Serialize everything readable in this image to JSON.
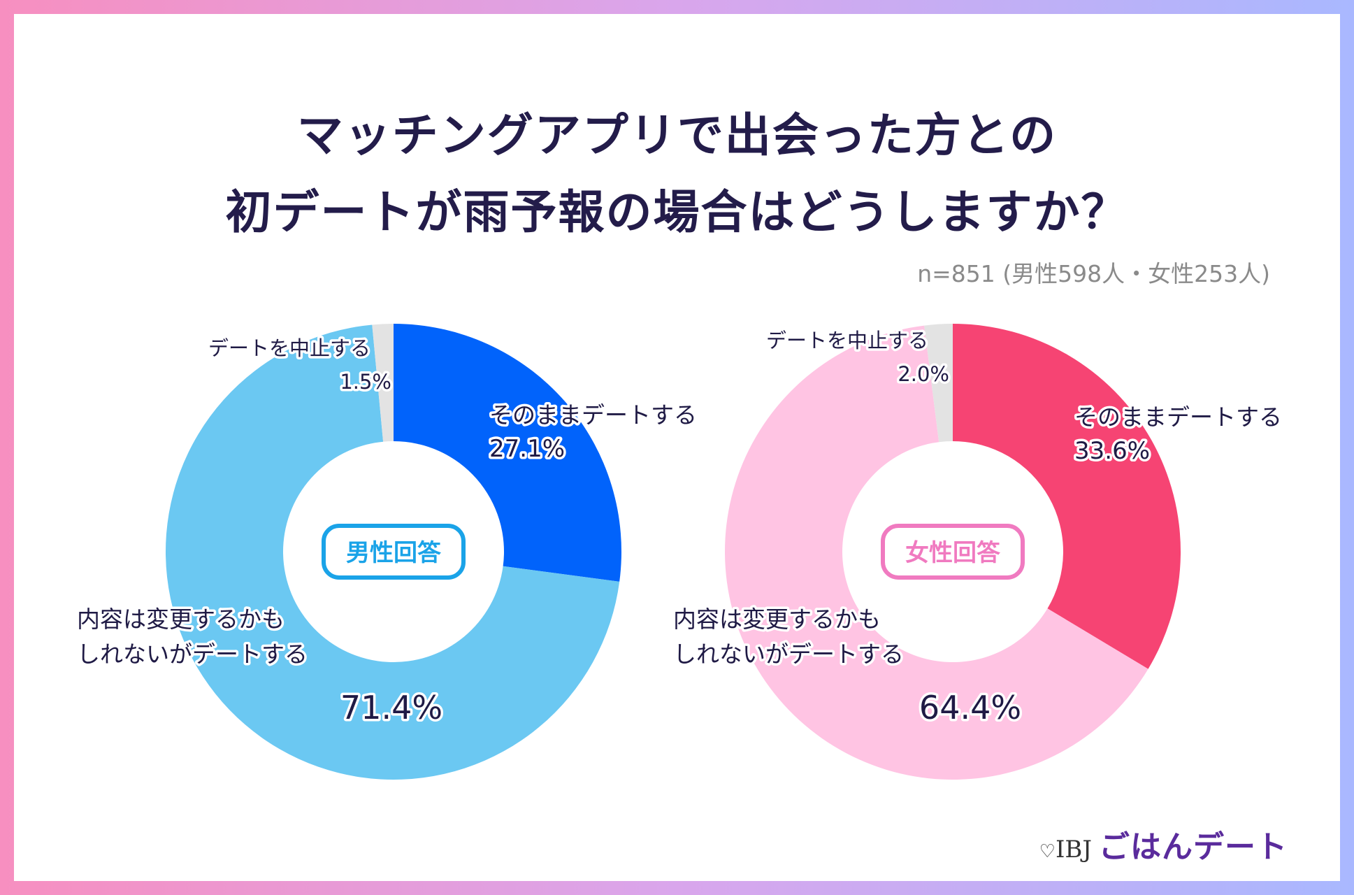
{
  "title_line1": "マッチングアプリで出会った方との",
  "title_line2": "初デートが雨予報の場合はどうしますか？",
  "sample_note": "n=851 (男性598人・女性253人)",
  "brand": {
    "heart": "♡",
    "ibj": "IBJ",
    "name": "ごはんデート"
  },
  "chart_data": [
    {
      "type": "pie",
      "center_label": "男性回答",
      "center_color": "#1aa3e8",
      "slices": [
        {
          "label": "そのままデートする",
          "value": 27.1,
          "value_text": "27.1%",
          "color": "#0163fb"
        },
        {
          "label": "内容は変更するかもしれないがデートする",
          "label_lines": [
            "内容は変更するかも",
            "しれないがデートする"
          ],
          "value": 71.4,
          "value_text": "71.4%",
          "color": "#6bc8f2"
        },
        {
          "label": "デートを中止する",
          "value": 1.5,
          "value_text": "1.5%",
          "color": "#e3e3e3"
        }
      ]
    },
    {
      "type": "pie",
      "center_label": "女性回答",
      "center_color": "#f07ac0",
      "slices": [
        {
          "label": "そのままデートする",
          "value": 33.6,
          "value_text": "33.6%",
          "color": "#f64473"
        },
        {
          "label": "内容は変更するかもしれないがデートする",
          "label_lines": [
            "内容は変更するかも",
            "しれないがデートする"
          ],
          "value": 64.4,
          "value_text": "64.4%",
          "color": "#ffc4e3"
        },
        {
          "label": "デートを中止する",
          "value": 2.0,
          "value_text": "2.0%",
          "color": "#e3e3e3"
        }
      ]
    }
  ]
}
